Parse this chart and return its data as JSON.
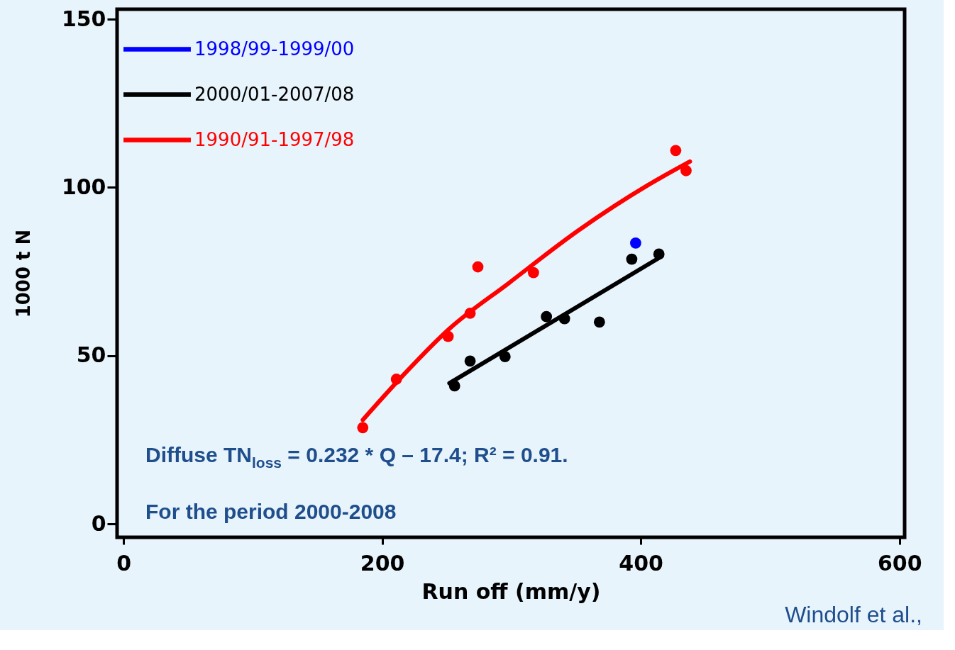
{
  "chart_data": {
    "type": "scatter",
    "xlabel": "Run off (mm/y)",
    "ylabel": "1000 t N",
    "xlim": [
      -5,
      604
    ],
    "ylim": [
      -4,
      153
    ],
    "xticks": [
      0,
      200,
      400,
      600
    ],
    "yticks": [
      0,
      50,
      100,
      150
    ],
    "grid": false,
    "legend": "top left",
    "marker": "circle",
    "line_style": "solid",
    "series": [
      {
        "name": "1998/99-1999/00",
        "color": "#0000ff",
        "x": [
          396
        ],
        "values": [
          83.5
        ]
      },
      {
        "name": "2000/01-2007/08",
        "color": "#000000",
        "x": [
          256,
          268,
          295,
          327,
          341,
          368,
          393,
          414
        ],
        "values": [
          41,
          48.4,
          49.7,
          61.6,
          61,
          60,
          78.7,
          80.2
        ]
      },
      {
        "name": "1990/91-1997/98",
        "color": "#ff0000",
        "x": [
          185,
          211,
          251,
          268,
          274,
          317,
          427,
          435
        ],
        "values": [
          28.6,
          43,
          55.7,
          62.6,
          76.4,
          74.7,
          111,
          105
        ]
      },
      {
        "color": "#000000",
        "type": "line",
        "marker": "none",
        "x": [
          252,
          416
        ],
        "values": [
          41.8,
          79.5
        ]
      },
      {
        "color": "#ff0000",
        "type": "line",
        "marker": "none",
        "x": [
          185,
          217,
          252,
          298,
          352,
          406,
          438
        ],
        "values": [
          30.9,
          44.5,
          58,
          71.6,
          87.3,
          100.8,
          107.7
        ]
      }
    ],
    "annotations": [
      "Diffuse TN$_{loss}$ = 0.232 * Q – 17.4; R² = 0.91.",
      "For  the period 2000-2008",
      "Windolf et al.,"
    ]
  }
}
